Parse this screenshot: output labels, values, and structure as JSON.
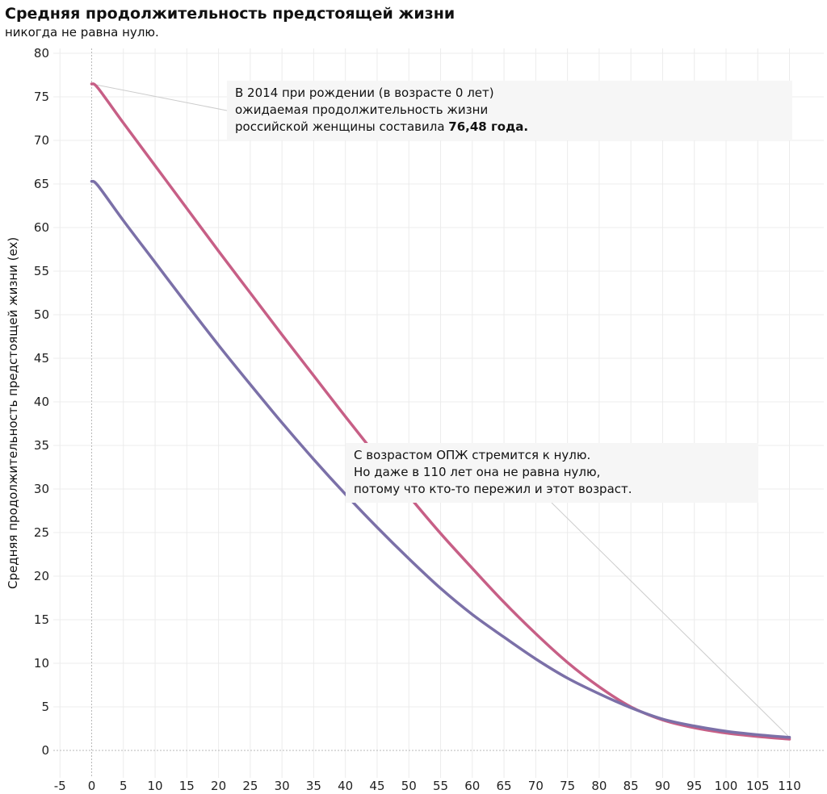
{
  "header": {
    "title": "Средняя продолжительность предстоящей жизни",
    "subtitle": "никогда не равна нулю."
  },
  "annotations": {
    "birth": {
      "line1": "В 2014 при рождении (в возрасте 0 лет)",
      "line2": "ожидаемая продолжительность жизни",
      "line3_text": "российской женщины составила ",
      "line3_bold": "76,48 года."
    },
    "old_age": {
      "line1": "С возрастом ОПЖ стремится к нулю.",
      "line2": "Но даже в 110 лет она не равна нулю,",
      "line3": "потому что кто-то пережил и этот возраст."
    }
  },
  "colors": {
    "women": "#c75f86",
    "men": "#7b70a8",
    "grid": "#ececec",
    "zero_line": "#b9b9b9",
    "annotation_bg": "#f6f6f6",
    "pointer_line": "#cccccc"
  },
  "chart_data": {
    "type": "line",
    "title": "Средняя продолжительность предстоящей жизни",
    "subtitle": "никогда не равна нулю.",
    "xlabel": "",
    "ylabel": "Средняя продолжительность предстоящей жизни (ex)",
    "xlim": [
      -5,
      110
    ],
    "ylim": [
      0,
      80
    ],
    "x_ticks": [
      -5,
      0,
      5,
      10,
      15,
      20,
      25,
      30,
      35,
      40,
      45,
      50,
      55,
      60,
      65,
      70,
      75,
      80,
      85,
      90,
      95,
      100,
      105,
      110
    ],
    "y_ticks": [
      0,
      5,
      10,
      15,
      20,
      25,
      30,
      35,
      40,
      45,
      50,
      55,
      60,
      65,
      70,
      75,
      80
    ],
    "grid": true,
    "x": [
      0,
      1,
      5,
      10,
      15,
      20,
      25,
      30,
      35,
      40,
      45,
      50,
      55,
      60,
      65,
      70,
      75,
      80,
      85,
      90,
      95,
      100,
      105,
      110
    ],
    "series": [
      {
        "values": [
          76.48,
          76.0,
          72.0,
          67.1,
          62.2,
          57.3,
          52.5,
          47.7,
          43.0,
          38.3,
          33.7,
          29.2,
          24.9,
          20.9,
          17.0,
          13.4,
          10.1,
          7.3,
          5.0,
          3.5,
          2.6,
          2.0,
          1.6,
          1.3
        ]
      },
      {
        "values": [
          65.3,
          64.8,
          60.8,
          56.0,
          51.2,
          46.5,
          42.0,
          37.6,
          33.4,
          29.4,
          25.6,
          22.0,
          18.6,
          15.6,
          13.0,
          10.5,
          8.3,
          6.5,
          4.9,
          3.6,
          2.8,
          2.2,
          1.8,
          1.5
        ]
      }
    ]
  }
}
